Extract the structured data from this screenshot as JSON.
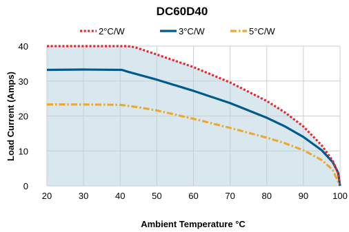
{
  "chart_data": {
    "type": "line",
    "title": "DC60D40",
    "xlabel": "Ambient Temperature °C",
    "ylabel": "Load Current (Amps)",
    "xlim": [
      20,
      100
    ],
    "ylim": [
      0,
      40
    ],
    "xticks": [
      20,
      30,
      40,
      50,
      60,
      70,
      80,
      90,
      100
    ],
    "yticks": [
      0,
      10,
      20,
      30,
      40
    ],
    "grid": true,
    "legend_position": "top",
    "area_fill_color": "#d9e8ee",
    "series": [
      {
        "name": "2°C/W",
        "color": "#e8262d",
        "style": "dotted",
        "points": [
          [
            20,
            40
          ],
          [
            42,
            40
          ],
          [
            44,
            39.7
          ],
          [
            50,
            37.6
          ],
          [
            60,
            34.0
          ],
          [
            70,
            29.6
          ],
          [
            80,
            24.3
          ],
          [
            85,
            21.0
          ],
          [
            90,
            17.0
          ],
          [
            95,
            11.6
          ],
          [
            98,
            7.2
          ],
          [
            99.5,
            3.5
          ],
          [
            100,
            0
          ]
        ]
      },
      {
        "name": "3°C/W",
        "color": "#005a8c",
        "style": "solid",
        "points": [
          [
            20,
            33.2
          ],
          [
            30,
            33.3
          ],
          [
            40.5,
            33.2
          ],
          [
            42,
            32.7
          ],
          [
            50,
            30.4
          ],
          [
            60,
            27.2
          ],
          [
            70,
            23.7
          ],
          [
            80,
            19.5
          ],
          [
            85,
            17.0
          ],
          [
            90,
            14.0
          ],
          [
            95,
            10.2
          ],
          [
            98,
            6.8
          ],
          [
            99.5,
            3.8
          ],
          [
            100,
            0
          ]
        ]
      },
      {
        "name": "5°C/W",
        "color": "#eba832",
        "style": "dashdot",
        "points": [
          [
            20,
            23.3
          ],
          [
            30,
            23.3
          ],
          [
            40,
            23.2
          ],
          [
            45,
            22.5
          ],
          [
            50,
            21.6
          ],
          [
            60,
            19.2
          ],
          [
            70,
            16.6
          ],
          [
            80,
            13.8
          ],
          [
            85,
            12.2
          ],
          [
            90,
            10.2
          ],
          [
            95,
            7.4
          ],
          [
            98,
            4.6
          ],
          [
            100,
            0
          ]
        ]
      }
    ]
  }
}
